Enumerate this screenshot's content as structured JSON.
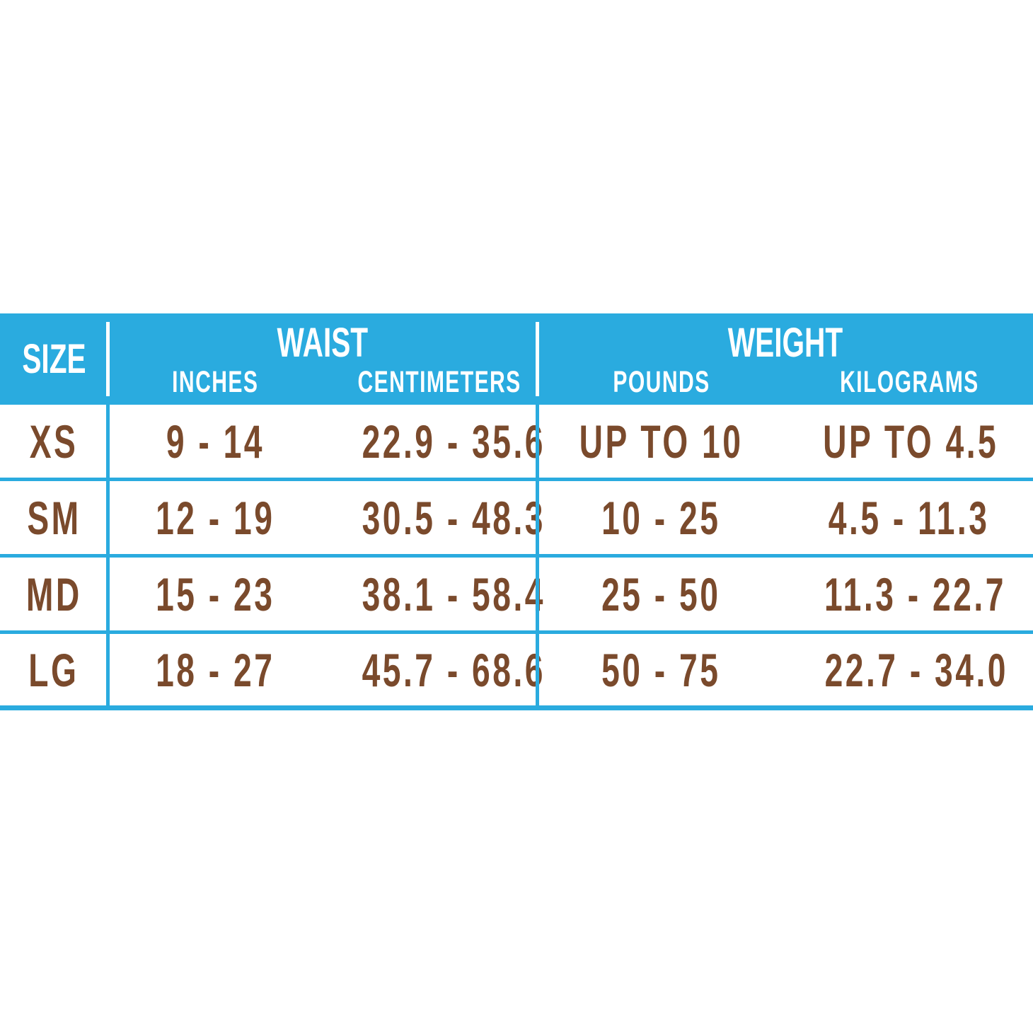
{
  "colors": {
    "accent_cyan": "#2aabdf",
    "body_text_brown": "#7a4a2c",
    "header_text": "#ffffff",
    "background": "#ffffff"
  },
  "chart_data": {
    "type": "table",
    "header": {
      "size_label": "SIZE",
      "groups": [
        {
          "title": "WAIST",
          "columns": [
            "INCHES",
            "CENTIMETERS"
          ]
        },
        {
          "title": "WEIGHT",
          "columns": [
            "POUNDS",
            "KILOGRAMS"
          ]
        }
      ]
    },
    "columns": [
      "SIZE",
      "WAIST INCHES",
      "WAIST CENTIMETERS",
      "WEIGHT POUNDS",
      "WEIGHT KILOGRAMS"
    ],
    "rows": [
      {
        "size": "XS",
        "waist_inches": "9 - 14",
        "waist_centimeters": "22.9 - 35.6",
        "weight_pounds": "UP TO 10",
        "weight_kilograms": "UP TO 4.5"
      },
      {
        "size": "SM",
        "waist_inches": "12 - 19",
        "waist_centimeters": "30.5 - 48.3",
        "weight_pounds": "10 - 25",
        "weight_kilograms": "4.5 - 11.3"
      },
      {
        "size": "MD",
        "waist_inches": "15 - 23",
        "waist_centimeters": "38.1 - 58.4",
        "weight_pounds": "25 - 50",
        "weight_kilograms": "11.3 - 22.7"
      },
      {
        "size": "LG",
        "waist_inches": "18 - 27",
        "waist_centimeters": "45.7 - 68.6",
        "weight_pounds": "50 - 75",
        "weight_kilograms": "22.7 - 34.0"
      }
    ]
  }
}
